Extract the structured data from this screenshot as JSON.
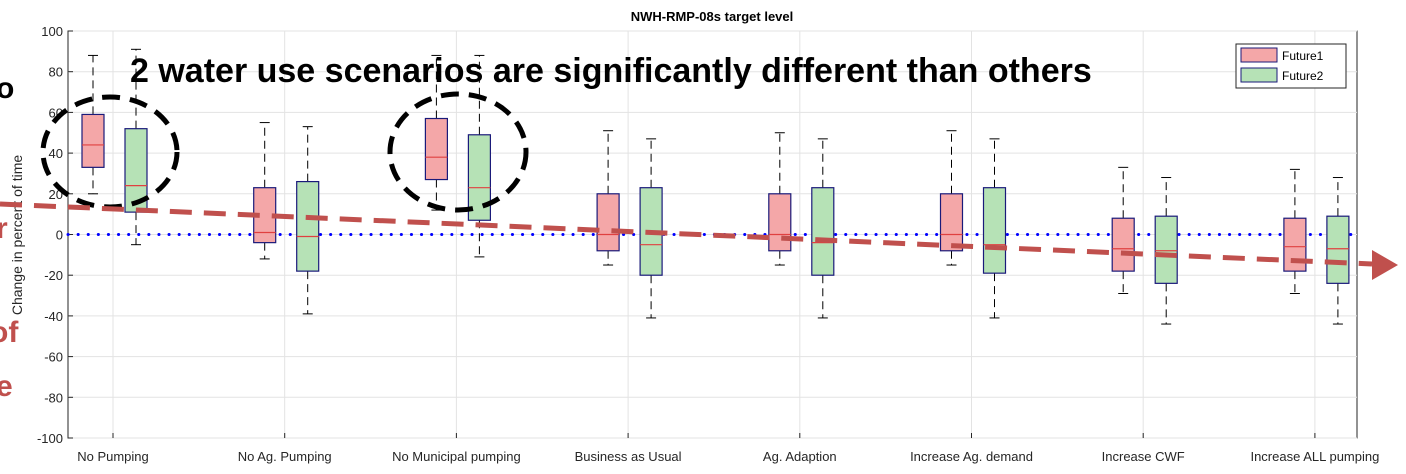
{
  "chart_data": {
    "type": "box",
    "title": "NWH-RMP-08s target level",
    "y_label": "Change in percent of time",
    "annotation": "2 water use scenarios are significantly different than others",
    "left_fragments": [
      "o",
      "r",
      "of",
      "e"
    ],
    "categories": [
      "No Pumping",
      "No Ag. Pumping",
      "No Municipal pumping",
      "Business as Usual",
      "Ag. Adaption",
      "Increase Ag. demand",
      "Increase CWF",
      "Increase ALL pumping"
    ],
    "series": [
      {
        "name": "Future1",
        "color": "#f4a7a8",
        "whislo": [
          20,
          -12,
          12,
          -15,
          -15,
          -15,
          -29,
          -29
        ],
        "q1": [
          33,
          -4,
          27,
          -8,
          -8,
          -8,
          -18,
          -18
        ],
        "median": [
          44,
          1,
          38,
          0,
          0,
          0,
          -7,
          -6
        ],
        "q3": [
          59,
          23,
          57,
          20,
          20,
          20,
          8,
          8
        ],
        "whishi": [
          88,
          55,
          88,
          51,
          50,
          51,
          33,
          32
        ]
      },
      {
        "name": "Future2",
        "color": "#b6e2b6",
        "whislo": [
          -5,
          -39,
          -11,
          -41,
          -41,
          -41,
          -44,
          -44
        ],
        "q1": [
          11,
          -18,
          7,
          -20,
          -20,
          -19,
          -24,
          -24
        ],
        "median": [
          24,
          -1,
          23,
          -5,
          -4,
          -5,
          -8,
          -7
        ],
        "q3": [
          52,
          26,
          49,
          23,
          23,
          23,
          9,
          9
        ],
        "whishi": [
          91,
          53,
          88,
          47,
          47,
          47,
          28,
          28
        ]
      }
    ],
    "hline": 0,
    "ylim": [
      -100,
      100
    ],
    "yticks": [
      -100,
      -80,
      -60,
      -40,
      -20,
      0,
      20,
      40,
      60,
      80,
      100
    ],
    "grid": true,
    "legend": "upper right"
  }
}
